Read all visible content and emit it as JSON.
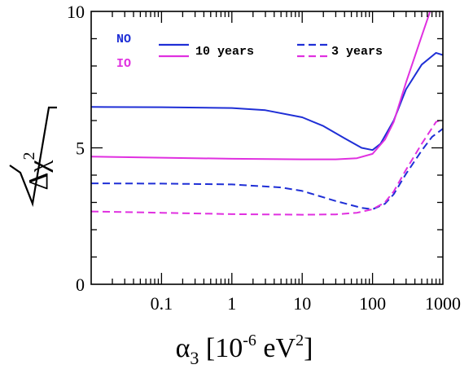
{
  "chart_data": {
    "type": "line",
    "xscale": "log",
    "xlim": [
      0.01,
      1000
    ],
    "ylim": [
      0,
      10
    ],
    "x_ticks": [
      {
        "value": 0.1,
        "label": "0.1"
      },
      {
        "value": 1,
        "label": "1"
      },
      {
        "value": 10,
        "label": "10"
      },
      {
        "value": 100,
        "label": "100"
      },
      {
        "value": 1000,
        "label": "1000"
      }
    ],
    "y_ticks": [
      {
        "value": 0,
        "label": "0"
      },
      {
        "value": 5,
        "label": "5"
      },
      {
        "value": 10,
        "label": "10"
      }
    ],
    "xlabel": {
      "base": "α",
      "sub": "3",
      "rest": " [10",
      "sup": "-6",
      "unit": " eV",
      "unit_sup": "2",
      "close": "]"
    },
    "ylabel": {
      "radicand": "Δχ",
      "sup": "2"
    },
    "legend": {
      "orderings": [
        {
          "label": "NO",
          "color": "#1f2fd6"
        },
        {
          "label": "IO",
          "color": "#e030e0"
        }
      ],
      "durations": [
        {
          "label": "10 years",
          "style": "solid"
        },
        {
          "label": "3 years",
          "style": "dashed"
        }
      ]
    },
    "series": [
      {
        "ordering": "NO",
        "duration": "10 years",
        "color": "#1f2fd6",
        "style": "solid",
        "points": [
          [
            0.01,
            6.5
          ],
          [
            0.1,
            6.49
          ],
          [
            1,
            6.46
          ],
          [
            3,
            6.38
          ],
          [
            10,
            6.12
          ],
          [
            20,
            5.8
          ],
          [
            40,
            5.35
          ],
          [
            70,
            5.0
          ],
          [
            100,
            4.92
          ],
          [
            130,
            5.15
          ],
          [
            200,
            6.0
          ],
          [
            300,
            7.15
          ],
          [
            500,
            8.05
          ],
          [
            800,
            8.48
          ],
          [
            1000,
            8.4
          ]
        ]
      },
      {
        "ordering": "IO",
        "duration": "10 years",
        "color": "#e030e0",
        "style": "solid",
        "points": [
          [
            0.01,
            4.68
          ],
          [
            0.1,
            4.64
          ],
          [
            1,
            4.6
          ],
          [
            10,
            4.58
          ],
          [
            30,
            4.58
          ],
          [
            60,
            4.62
          ],
          [
            100,
            4.78
          ],
          [
            150,
            5.3
          ],
          [
            200,
            5.95
          ],
          [
            300,
            7.4
          ],
          [
            500,
            9.1
          ],
          [
            700,
            10.2
          ]
        ]
      },
      {
        "ordering": "NO",
        "duration": "3 years",
        "color": "#1f2fd6",
        "style": "dashed",
        "points": [
          [
            0.01,
            3.7
          ],
          [
            0.1,
            3.69
          ],
          [
            1,
            3.66
          ],
          [
            5,
            3.55
          ],
          [
            10,
            3.42
          ],
          [
            30,
            3.05
          ],
          [
            70,
            2.8
          ],
          [
            100,
            2.75
          ],
          [
            150,
            2.95
          ],
          [
            200,
            3.3
          ],
          [
            300,
            4.05
          ],
          [
            500,
            4.9
          ],
          [
            700,
            5.4
          ],
          [
            1000,
            5.7
          ]
        ]
      },
      {
        "ordering": "IO",
        "duration": "3 years",
        "color": "#e030e0",
        "style": "dashed",
        "points": [
          [
            0.01,
            2.67
          ],
          [
            0.1,
            2.62
          ],
          [
            1,
            2.57
          ],
          [
            10,
            2.55
          ],
          [
            30,
            2.56
          ],
          [
            60,
            2.62
          ],
          [
            100,
            2.75
          ],
          [
            150,
            3.0
          ],
          [
            200,
            3.4
          ],
          [
            300,
            4.2
          ],
          [
            500,
            5.15
          ],
          [
            800,
            5.95
          ],
          [
            1000,
            6.05
          ]
        ]
      }
    ]
  }
}
